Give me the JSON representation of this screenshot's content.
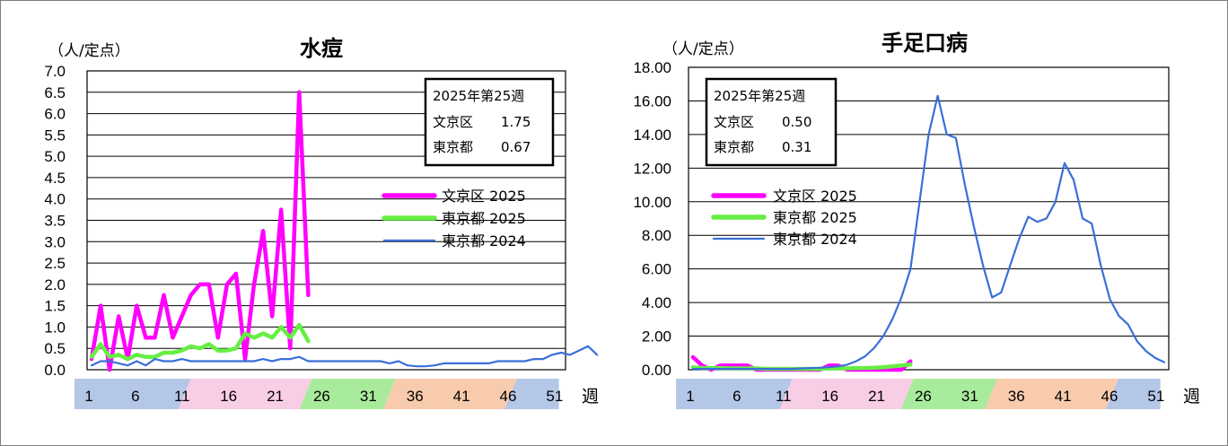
{
  "chart_data": [
    {
      "type": "line",
      "title": "水痘",
      "unit_label": "（人/定点）",
      "yticks": [
        "0.0",
        "0.5",
        "1.0",
        "1.5",
        "2.0",
        "2.5",
        "3.0",
        "3.5",
        "4.0",
        "4.5",
        "5.0",
        "5.5",
        "6.0",
        "6.5",
        "7.0"
      ],
      "ylim": [
        0,
        7
      ],
      "x_tick_labels": [
        "1",
        "6",
        "11",
        "16",
        "21",
        "26",
        "31",
        "36",
        "41",
        "46",
        "51"
      ],
      "x_unit": "週",
      "info": {
        "line1": "2025年第25週",
        "line2_label": "文京区",
        "line2_value": "1.75",
        "line3_label": "東京都",
        "line3_value": "0.67"
      },
      "series": [
        {
          "name": "文京区 2025",
          "color": "#ff00ff",
          "values": [
            0.25,
            1.5,
            0,
            1.25,
            0.25,
            1.5,
            0.75,
            0.75,
            1.75,
            0.75,
            1.25,
            1.75,
            2.0,
            2.0,
            0.75,
            2.0,
            2.25,
            0.25,
            2.0,
            3.25,
            1.25,
            3.75,
            0.5,
            6.5,
            1.75
          ]
        },
        {
          "name": "東京都 2025",
          "color": "#66ee44",
          "values": [
            0.3,
            0.6,
            0.3,
            0.35,
            0.25,
            0.35,
            0.3,
            0.3,
            0.4,
            0.4,
            0.45,
            0.55,
            0.5,
            0.6,
            0.45,
            0.45,
            0.5,
            0.85,
            0.75,
            0.85,
            0.75,
            1.0,
            0.75,
            1.05,
            0.67
          ]
        },
        {
          "name": "東京都 2024",
          "color": "#3a6fd8",
          "values": [
            0.1,
            0.2,
            0.2,
            0.15,
            0.1,
            0.2,
            0.1,
            0.25,
            0.2,
            0.2,
            0.25,
            0.2,
            0.2,
            0.2,
            0.2,
            0.2,
            0.2,
            0.2,
            0.2,
            0.25,
            0.2,
            0.25,
            0.25,
            0.3,
            0.2,
            0.2,
            0.2,
            0.2,
            0.2,
            0.2,
            0.2,
            0.2,
            0.2,
            0.15,
            0.2,
            0.1,
            0.08,
            0.08,
            0.1,
            0.15,
            0.15,
            0.15,
            0.15,
            0.15,
            0.15,
            0.2,
            0.2,
            0.2,
            0.2,
            0.25,
            0.25,
            0.35,
            0.4,
            0.35,
            0.45,
            0.55,
            0.35
          ]
        }
      ]
    },
    {
      "type": "line",
      "title": "手足口病",
      "unit_label": "（人/定点）",
      "yticks": [
        "0.00",
        "2.00",
        "4.00",
        "6.00",
        "8.00",
        "10.00",
        "12.00",
        "14.00",
        "16.00",
        "18.00"
      ],
      "ylim": [
        0,
        18
      ],
      "x_tick_labels": [
        "1",
        "6",
        "11",
        "16",
        "21",
        "26",
        "31",
        "36",
        "41",
        "46",
        "51"
      ],
      "x_unit": "週",
      "info": {
        "line1": "2025年第25週",
        "line2_label": "文京区",
        "line2_value": "0.50",
        "line3_label": "東京都",
        "line3_value": "0.31"
      },
      "series": [
        {
          "name": "文京区 2025",
          "color": "#ff00ff",
          "values": [
            0.75,
            0.25,
            0,
            0.25,
            0.25,
            0.25,
            0.25,
            0,
            0,
            0,
            0,
            0,
            0,
            0,
            0,
            0.25,
            0.25,
            0,
            0,
            0,
            0,
            0,
            0,
            0,
            0.5
          ]
        },
        {
          "name": "東京都 2025",
          "color": "#66ee44",
          "values": [
            0.15,
            0.1,
            0.1,
            0.1,
            0.08,
            0.08,
            0.08,
            0.08,
            0.05,
            0.05,
            0.05,
            0.05,
            0.05,
            0.05,
            0.05,
            0.08,
            0.08,
            0.08,
            0.1,
            0.1,
            0.12,
            0.15,
            0.2,
            0.25,
            0.31
          ]
        },
        {
          "name": "東京都 2024",
          "color": "#3a6fd8",
          "values": [
            0.05,
            0.05,
            0.05,
            0.05,
            0.05,
            0.05,
            0.05,
            0.05,
            0.05,
            0.05,
            0.05,
            0.05,
            0.08,
            0.1,
            0.12,
            0.15,
            0.2,
            0.3,
            0.5,
            0.8,
            1.3,
            2.0,
            3.0,
            4.3,
            6.0,
            10.0,
            14.0,
            16.3,
            14.0,
            13.8,
            11.0,
            8.5,
            6.2,
            4.3,
            4.6,
            6.2,
            7.8,
            9.1,
            8.8,
            9.0,
            10.0,
            12.3,
            11.3,
            9.0,
            8.7,
            6.2,
            4.2,
            3.2,
            2.7,
            1.7,
            1.1,
            0.7,
            0.45
          ]
        }
      ]
    }
  ]
}
